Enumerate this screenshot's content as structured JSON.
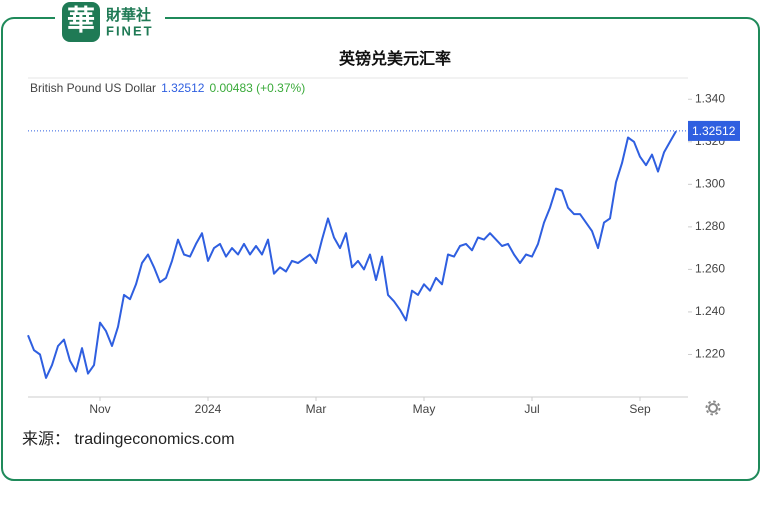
{
  "logo": {
    "mark": "華",
    "name": "財華社",
    "sub": "FINET"
  },
  "source": "来源： tradingeconomics.com",
  "chart_data": {
    "type": "line",
    "title": "英镑兑美元汇率",
    "legend": {
      "name": "British Pound US Dollar",
      "price": "1.32512",
      "change": "0.00483 (+0.37%)"
    },
    "series": [
      {
        "name": "British Pound US Dollar",
        "color": "#2f5fe0",
        "values": [
          1.229,
          1.222,
          1.22,
          1.209,
          1.215,
          1.224,
          1.227,
          1.217,
          1.212,
          1.223,
          1.211,
          1.215,
          1.235,
          1.231,
          1.224,
          1.233,
          1.248,
          1.246,
          1.253,
          1.263,
          1.267,
          1.261,
          1.254,
          1.256,
          1.264,
          1.274,
          1.267,
          1.266,
          1.272,
          1.277,
          1.264,
          1.27,
          1.272,
          1.266,
          1.27,
          1.267,
          1.272,
          1.267,
          1.271,
          1.267,
          1.274,
          1.258,
          1.261,
          1.259,
          1.264,
          1.263,
          1.265,
          1.267,
          1.263,
          1.274,
          1.284,
          1.275,
          1.27,
          1.277,
          1.261,
          1.264,
          1.26,
          1.267,
          1.255,
          1.266,
          1.248,
          1.245,
          1.241,
          1.236,
          1.25,
          1.248,
          1.253,
          1.25,
          1.256,
          1.253,
          1.267,
          1.266,
          1.271,
          1.272,
          1.269,
          1.275,
          1.274,
          1.277,
          1.274,
          1.271,
          1.272,
          1.267,
          1.263,
          1.267,
          1.266,
          1.272,
          1.282,
          1.289,
          1.298,
          1.297,
          1.289,
          1.286,
          1.286,
          1.282,
          1.278,
          1.27,
          1.282,
          1.284,
          1.301,
          1.31,
          1.322,
          1.32,
          1.313,
          1.309,
          1.314,
          1.306,
          1.315,
          1.32,
          1.325
        ]
      }
    ],
    "last_value": 1.32512,
    "xlim": [
      0,
      110
    ],
    "xticks": [
      {
        "value": 12,
        "label": "Nov"
      },
      {
        "value": 30,
        "label": "2024"
      },
      {
        "value": 48,
        "label": "Mar"
      },
      {
        "value": 66,
        "label": "May"
      },
      {
        "value": 84,
        "label": "Jul"
      },
      {
        "value": 102,
        "label": "Sep"
      }
    ],
    "ylim": [
      1.2,
      1.35
    ],
    "yticks": [
      {
        "value": 1.22,
        "label": "1.220"
      },
      {
        "value": 1.24,
        "label": "1.240"
      },
      {
        "value": 1.26,
        "label": "1.260"
      },
      {
        "value": 1.28,
        "label": "1.280"
      },
      {
        "value": 1.3,
        "label": "1.300"
      },
      {
        "value": 1.32,
        "label": "1.320"
      },
      {
        "value": 1.34,
        "label": "1.340"
      }
    ],
    "grid": false
  }
}
